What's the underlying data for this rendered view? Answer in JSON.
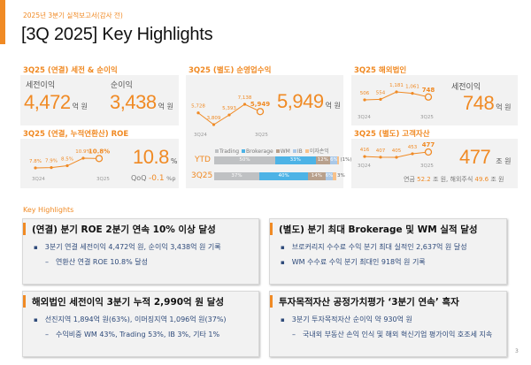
{
  "header": {
    "subtitle": "2025년 3분기 실적보고서(감사 전)",
    "title": "[3Q 2025] Key Highlights"
  },
  "colors": {
    "accent": "#f08a24",
    "trading": "#bfc1c3",
    "brokerage": "#4db3e6",
    "wm": "#b8a08c",
    "ib": "#a9c8e8",
    "interest": "#f7c18a"
  },
  "panel_profit": {
    "heading": "3Q25 (연결) 세전 & 순이익",
    "pretax_label": "세전이익",
    "pretax_value": "4,472",
    "pretax_unit": "억 원",
    "net_label": "순이익",
    "net_value": "3,438",
    "net_unit": "억 원"
  },
  "panel_roe": {
    "heading": "3Q25 (연결, 누적연환산) ROE",
    "value": "10.8",
    "value_unit": "%",
    "qoq_label": "QoQ",
    "qoq_value": "-0.1",
    "qoq_unit": "%p",
    "x_start": "3Q24",
    "x_end": "3Q25",
    "series": [
      {
        "label": "7.8%",
        "v": 7.8
      },
      {
        "label": "7.9%",
        "v": 7.9
      },
      {
        "label": "8.5%",
        "v": 8.5
      },
      {
        "label": "10.9%",
        "v": 10.9
      },
      {
        "label": "10.8%",
        "v": 10.8
      }
    ]
  },
  "panel_revenue": {
    "heading": "3Q25 (별도) 순영업수익",
    "value": "5,949",
    "unit": "억 원",
    "x_start": "3Q24",
    "x_end": "3Q25",
    "series": [
      {
        "label": "5,728",
        "v": 5728
      },
      {
        "label": "3,809",
        "v": 3809
      },
      {
        "label": "5,393",
        "v": 5393
      },
      {
        "label": "7,138",
        "v": 7138
      },
      {
        "label": "5,949",
        "v": 5949
      }
    ],
    "legend": [
      "Trading",
      "Brokerage",
      "WM",
      "IB",
      "이자손익"
    ],
    "bars": [
      {
        "label": "YTD",
        "segments": [
          {
            "name": "Trading",
            "pct": 50,
            "text": "50%"
          },
          {
            "name": "Brokerage",
            "pct": 33,
            "text": "33%"
          },
          {
            "name": "WM",
            "pct": 12,
            "text": "12%"
          },
          {
            "name": "IB",
            "pct": 6,
            "text": "6%"
          },
          {
            "name": "이자손익",
            "pct": -1,
            "text": "(1%)"
          }
        ]
      },
      {
        "label": "3Q25",
        "segments": [
          {
            "name": "Trading",
            "pct": 37,
            "text": "37%"
          },
          {
            "name": "Brokerage",
            "pct": 40,
            "text": "40%"
          },
          {
            "name": "WM",
            "pct": 14,
            "text": "14%"
          },
          {
            "name": "IB",
            "pct": 6,
            "text": "6%"
          },
          {
            "name": "이자손익",
            "pct": 3,
            "text": "3%"
          }
        ]
      }
    ]
  },
  "panel_overseas": {
    "heading": "3Q25 해외법인",
    "label": "세전이익",
    "value": "748",
    "unit": "억 원",
    "x_start": "3Q24",
    "x_end": "3Q25",
    "series": [
      {
        "label": "506",
        "v": 506
      },
      {
        "label": "554",
        "v": 554
      },
      {
        "label": "1,181",
        "v": 1181
      },
      {
        "label": "1,061",
        "v": 1061
      },
      {
        "label": "748",
        "v": 748
      }
    ]
  },
  "panel_assets": {
    "heading": "3Q25 (별도) 고객자산",
    "value": "477",
    "unit": "조 원",
    "x_start": "3Q24",
    "x_end": "3Q25",
    "series": [
      {
        "label": "416",
        "v": 416
      },
      {
        "label": "407",
        "v": 407
      },
      {
        "label": "405",
        "v": 405
      },
      {
        "label": "453",
        "v": 453
      },
      {
        "label": "477",
        "v": 477
      }
    ],
    "foot_pension_label": "연금",
    "foot_pension_value": "52.2",
    "foot_unit1": "조 원,",
    "foot_overseas_label": "해외주식",
    "foot_overseas_value": "49.6",
    "foot_unit2": "조 원"
  },
  "key_highlights": {
    "label": "Key Highlights",
    "cards": [
      {
        "title": "(연결) 분기 ROE 2분기 연속 10% 이상 달성",
        "bullets": [
          "3분기 연결 세전이익 4,472억 원, 순이익 3,438억 원 기록"
        ],
        "subs": [
          "연환산 연결 ROE 10.8% 달성"
        ]
      },
      {
        "title": "(별도) 분기 최대 Brokerage 및 WM 실적 달성",
        "bullets": [
          "브로커리지 수수료 수익 분기 최대 실적인 2,637억 원 달성",
          "WM 수수료 수익 분기 최대인 918억 원 기록"
        ],
        "subs": []
      },
      {
        "title": "해외법인 세전이익 3분기 누적 2,990억 원 달성",
        "bullets": [
          "선진지역 1,894억 원(63%), 이머징지역 1,096억 원(37%)"
        ],
        "subs": [
          "수익비중 WM 43%, Trading 53%, IB 3%, 기타 1%"
        ]
      },
      {
        "title": "투자목적자산 공정가치평가 ‘3분기 연속’ 흑자",
        "bullets": [
          "3분기 투자목적자산 순이익 약 930억 원"
        ],
        "subs": [
          "국내외 부동산 손익 인식 및 해외 혁신기업 평가이익 호조세 지속"
        ]
      }
    ]
  },
  "page_number": "3"
}
